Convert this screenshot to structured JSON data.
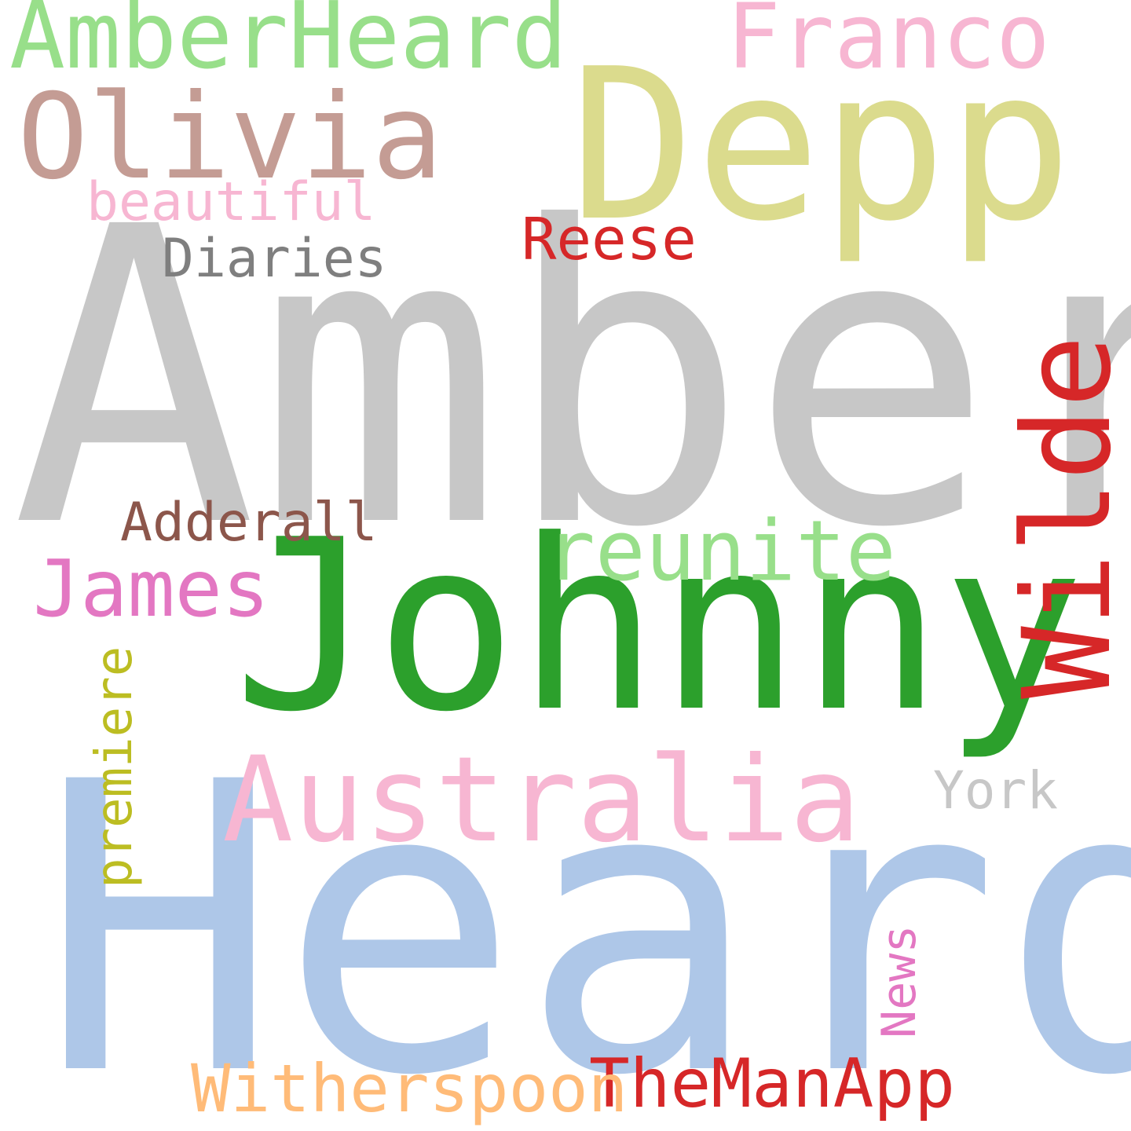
{
  "words": [
    {
      "id": "amber",
      "text": "Amber",
      "color": "#c7c7c7"
    },
    {
      "id": "heard",
      "text": "Heard",
      "color": "#aec7e8"
    },
    {
      "id": "johnny",
      "text": "Johnny",
      "color": "#2ca02c"
    },
    {
      "id": "depp",
      "text": "Depp",
      "color": "#dbdb8d"
    },
    {
      "id": "wilde",
      "text": "Wilde",
      "color": "#d62728"
    },
    {
      "id": "australia",
      "text": "Australia",
      "color": "#f7b6d2"
    },
    {
      "id": "olivia",
      "text": "Olivia",
      "color": "#c49c94"
    },
    {
      "id": "amberheard",
      "text": "AmberHeard",
      "color": "#98df8a"
    },
    {
      "id": "franco",
      "text": "Franco",
      "color": "#f7b6d2"
    },
    {
      "id": "reunite",
      "text": "reunite",
      "color": "#98df8a"
    },
    {
      "id": "james",
      "text": "James",
      "color": "#e377c2"
    },
    {
      "id": "theманapp",
      "text": "TheManApp",
      "color": "#d62728"
    },
    {
      "id": "witherspoon",
      "text": "Witherspoon",
      "color": "#ffbb78"
    },
    {
      "id": "premiere",
      "text": "premiere",
      "color": "#bcbd22"
    },
    {
      "id": "adderall",
      "text": "Adderall",
      "color": "#8c564b"
    },
    {
      "id": "reese",
      "text": "Reese",
      "color": "#d62728"
    },
    {
      "id": "diaries",
      "text": "Diaries",
      "color": "#7f7f7f"
    },
    {
      "id": "beautiful",
      "text": "beautiful",
      "color": "#f7b6d2"
    },
    {
      "id": "york",
      "text": "York",
      "color": "#c7c7c7"
    },
    {
      "id": "news",
      "text": "News",
      "color": "#e377c2"
    }
  ]
}
